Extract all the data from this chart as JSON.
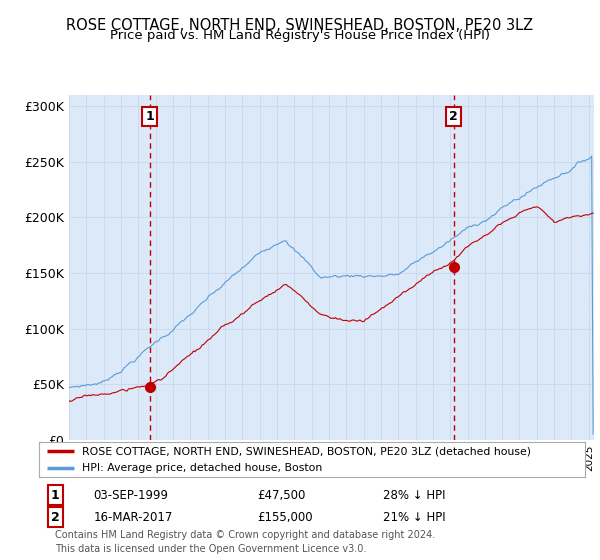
{
  "title": "ROSE COTTAGE, NORTH END, SWINESHEAD, BOSTON, PE20 3LZ",
  "subtitle": "Price paid vs. HM Land Registry's House Price Index (HPI)",
  "ylabel_ticks": [
    "£0",
    "£50K",
    "£100K",
    "£150K",
    "£200K",
    "£250K",
    "£300K"
  ],
  "ytick_values": [
    0,
    50000,
    100000,
    150000,
    200000,
    250000,
    300000
  ],
  "ylim": [
    0,
    310000
  ],
  "xlim_start": 1995.0,
  "xlim_end": 2025.3,
  "sale1_date": 1999.67,
  "sale1_price": 47500,
  "sale1_label": "1",
  "sale2_date": 2017.21,
  "sale2_price": 155000,
  "sale2_label": "2",
  "hpi_color": "#5b9bd5",
  "price_color": "#c00000",
  "grid_color": "#c8d8ee",
  "bg_color": "#dce9f8",
  "legend_line1": "ROSE COTTAGE, NORTH END, SWINESHEAD, BOSTON, PE20 3LZ (detached house)",
  "legend_line2": "HPI: Average price, detached house, Boston",
  "annotation1_date": "03-SEP-1999",
  "annotation1_price": "£47,500",
  "annotation1_hpi": "28% ↓ HPI",
  "annotation2_date": "16-MAR-2017",
  "annotation2_price": "£155,000",
  "annotation2_hpi": "21% ↓ HPI",
  "footer": "Contains HM Land Registry data © Crown copyright and database right 2024.\nThis data is licensed under the Open Government Licence v3.0."
}
